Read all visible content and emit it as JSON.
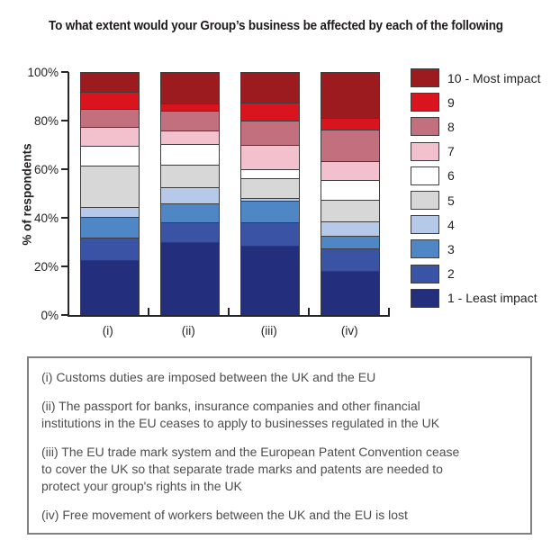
{
  "title": "To what extent would your Group’s business be affected by each of the following",
  "colors": {
    "axis": "#262626",
    "segment_border": "#3d3d3d",
    "box_border": "#808080",
    "footnote_text": "#4d4d4f"
  },
  "chart_data": {
    "type": "bar",
    "variant": "stacked_percent",
    "title": "To what extent would your Group’s business be affected by each of the following",
    "xlabel": "",
    "ylabel": "% of respondents",
    "ylim": [
      0,
      100
    ],
    "ytick_step": 20,
    "ytick_labels": [
      "0%",
      "20%",
      "40%",
      "60%",
      "80%",
      "100%"
    ],
    "grid": false,
    "legend_position": "right",
    "categories": [
      "(i)",
      "(ii)",
      "(iii)",
      "(iv)"
    ],
    "series": [
      {
        "name": "1 - Least impact",
        "color": "#232e7d",
        "values": [
          22.5,
          30.0,
          28.5,
          18.0
        ]
      },
      {
        "name": "2",
        "color": "#3a53a4",
        "values": [
          9.5,
          8.0,
          9.5,
          9.5
        ]
      },
      {
        "name": "3",
        "color": "#4f86c5",
        "values": [
          8.5,
          8.0,
          9.0,
          5.0
        ]
      },
      {
        "name": "4",
        "color": "#b7c9e9",
        "values": [
          4.0,
          6.5,
          1.0,
          6.0
        ]
      },
      {
        "name": "5",
        "color": "#d7d7d8",
        "values": [
          17.0,
          9.5,
          8.5,
          9.0
        ]
      },
      {
        "name": "6",
        "color": "#ffffff",
        "values": [
          8.0,
          8.5,
          3.5,
          8.0
        ]
      },
      {
        "name": "7",
        "color": "#f2c1cd",
        "values": [
          8.0,
          5.5,
          10.0,
          8.0
        ]
      },
      {
        "name": "8",
        "color": "#c3707e",
        "values": [
          7.5,
          8.0,
          10.0,
          13.0
        ]
      },
      {
        "name": "9",
        "color": "#da141e",
        "values": [
          7.0,
          3.0,
          7.5,
          4.5
        ]
      },
      {
        "name": "10 - Most impact",
        "color": "#9b1b1e",
        "values": [
          8.0,
          13.0,
          12.5,
          19.0
        ]
      }
    ]
  },
  "footnote_box": {
    "items": [
      "(i) Customs duties are imposed between the UK and the EU",
      "(ii) The passport for banks, insurance companies and other financial\ninstitutions in the EU ceases to apply to businesses regulated in the UK",
      "(iii) The EU trade mark system and the European Patent Convention cease\nto cover the UK so that separate trade marks and patents are needed to\nprotect your group's rights in the UK",
      "(iv) Free movement of workers between the UK and the EU is lost"
    ]
  }
}
